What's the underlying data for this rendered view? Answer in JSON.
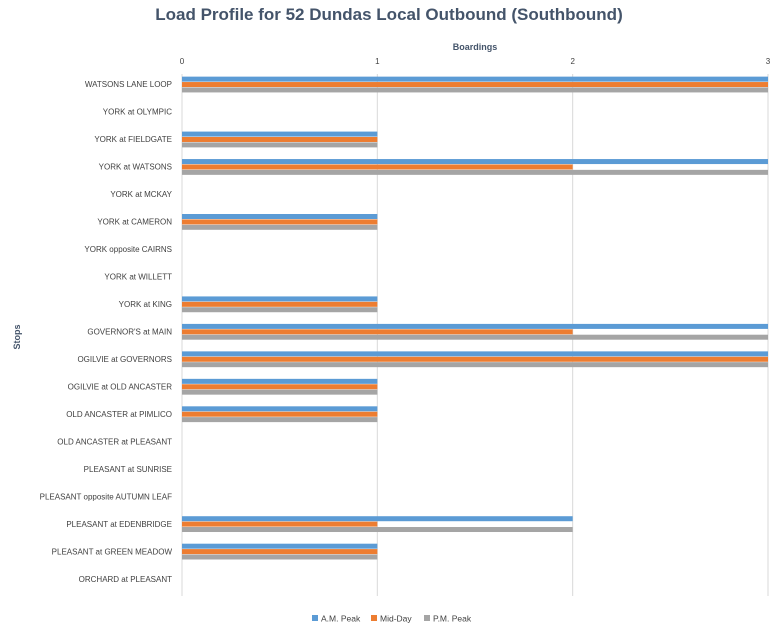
{
  "chart_data": {
    "type": "bar",
    "orientation": "horizontal",
    "title": "Load Profile for 52 Dundas Local Outbound (Southbound)",
    "xlabel": "Boardings",
    "ylabel": "Stops",
    "xlim": [
      0,
      3
    ],
    "xticks": [
      "0",
      "1",
      "2",
      "3"
    ],
    "grid": true,
    "legend_position": "bottom",
    "categories": [
      "WATSONS LANE LOOP",
      "YORK at OLYMPIC",
      "YORK at FIELDGATE",
      "YORK at WATSONS",
      "YORK at MCKAY",
      "YORK at CAMERON",
      "YORK opposite CAIRNS",
      "YORK at WILLETT",
      "YORK at KING",
      "GOVERNOR'S at MAIN",
      "OGILVIE at GOVERNORS",
      "OGILVIE at OLD ANCASTER",
      "OLD ANCASTER at PIMLICO",
      "OLD ANCASTER at PLEASANT",
      "PLEASANT at SUNRISE",
      "PLEASANT opposite  AUTUMN LEAF",
      "PLEASANT at EDENBRIDGE",
      "PLEASANT at GREEN MEADOW",
      "ORCHARD at PLEASANT"
    ],
    "series": [
      {
        "name": "A.M. Peak",
        "color": "#5b9bd5",
        "values": [
          3,
          0,
          1,
          3,
          0,
          1,
          0,
          0,
          1,
          3,
          3,
          1,
          1,
          0,
          0,
          0,
          2,
          1,
          0
        ]
      },
      {
        "name": "Mid-Day",
        "color": "#ed7d31",
        "values": [
          3,
          0,
          1,
          2,
          0,
          1,
          0,
          0,
          1,
          2,
          3,
          1,
          1,
          0,
          0,
          0,
          1,
          1,
          0
        ]
      },
      {
        "name": "P.M. Peak",
        "color": "#a5a5a5",
        "values": [
          3,
          0,
          1,
          3,
          0,
          1,
          0,
          0,
          1,
          3,
          3,
          1,
          1,
          0,
          0,
          0,
          2,
          1,
          0
        ]
      }
    ]
  }
}
